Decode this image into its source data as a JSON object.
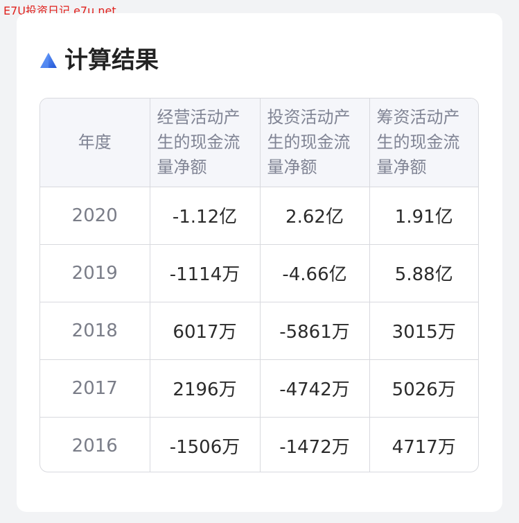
{
  "watermark": "E7U投资日记 e7u.net",
  "section": {
    "title": "计算结果",
    "icon": "blue-triangle-icon"
  },
  "colors": {
    "accent": "#3a7bf0",
    "watermark": "#e0201c",
    "header_bg": "#f5f6fa",
    "border": "#d8d9de"
  },
  "table": {
    "headers": [
      "年度",
      "经营活动产生的现金流量净额",
      "投资活动产生的现金流量净额",
      "筹资活动产生的现金流量净额"
    ],
    "rows": [
      {
        "year": "2020",
        "operating": "-1.12亿",
        "investing": "2.62亿",
        "financing": "1.91亿"
      },
      {
        "year": "2019",
        "operating": "-1114万",
        "investing": "-4.66亿",
        "financing": "5.88亿"
      },
      {
        "year": "2018",
        "operating": "6017万",
        "investing": "-5861万",
        "financing": "3015万"
      },
      {
        "year": "2017",
        "operating": "2196万",
        "investing": "-4742万",
        "financing": "5026万"
      },
      {
        "year": "2016",
        "operating": "-1506万",
        "investing": "-1472万",
        "financing": "4717万"
      }
    ]
  }
}
